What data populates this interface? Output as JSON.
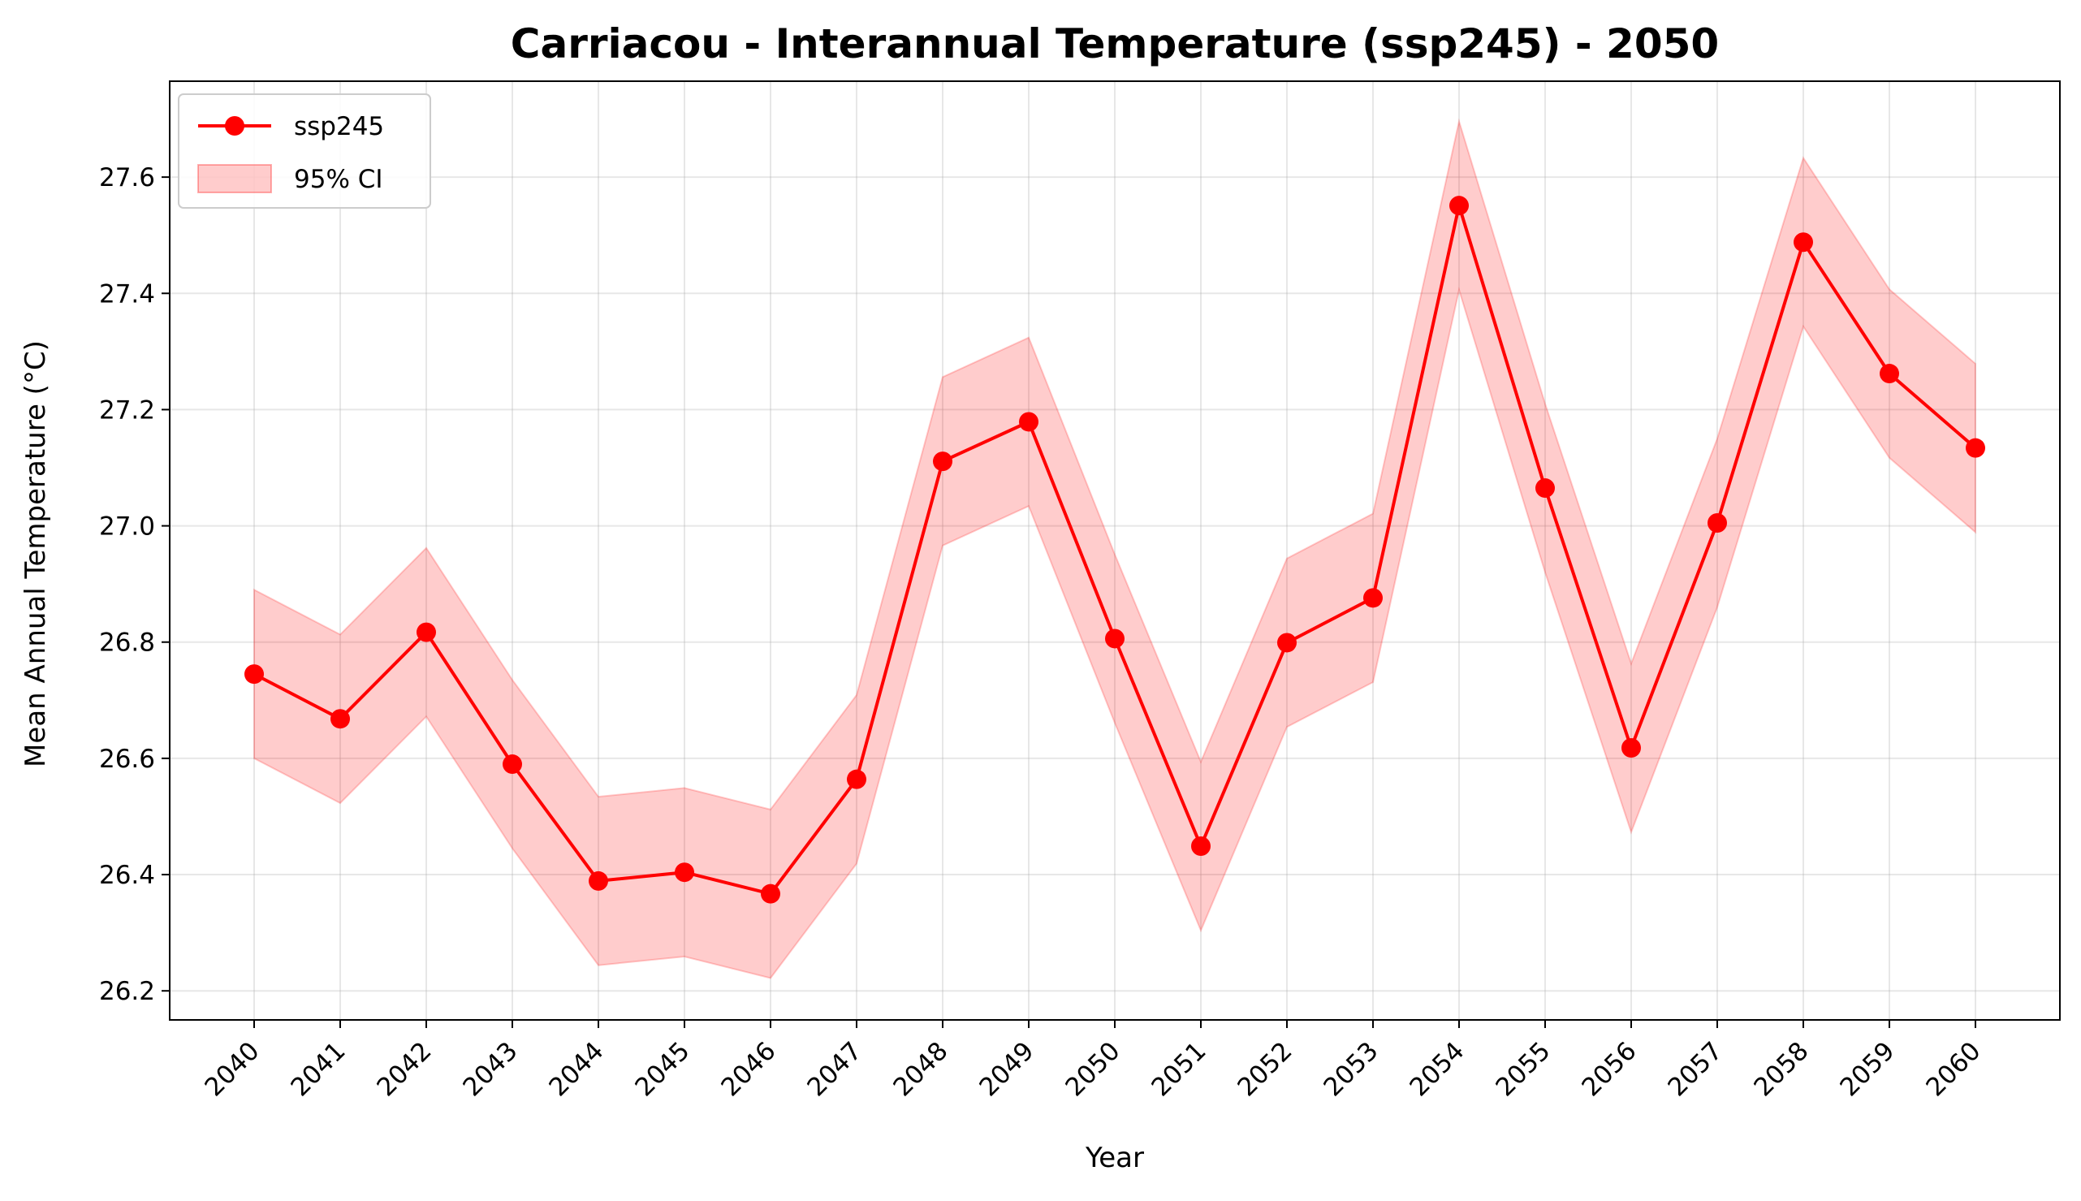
{
  "chart_data": {
    "type": "line",
    "title": "Carriacou - Interannual Temperature (ssp245) - 2050",
    "xlabel": "Year",
    "ylabel": "Mean Annual Temperature (°C)",
    "categories": [
      "2040",
      "2041",
      "2042",
      "2043",
      "2044",
      "2045",
      "2046",
      "2047",
      "2048",
      "2049",
      "2050",
      "2051",
      "2052",
      "2053",
      "2054",
      "2055",
      "2056",
      "2057",
      "2058",
      "2059",
      "2060"
    ],
    "series": [
      {
        "name": "ssp245",
        "color": "#ff0000",
        "values": [
          26.745,
          26.668,
          26.817,
          26.59,
          26.389,
          26.404,
          26.367,
          26.564,
          27.111,
          27.179,
          26.806,
          26.449,
          26.799,
          26.876,
          27.551,
          27.065,
          26.618,
          27.005,
          27.488,
          27.262,
          27.134
        ]
      }
    ],
    "ci_band": {
      "name": "95% CI",
      "color": "#ff0000",
      "opacity": 0.2,
      "lower": [
        26.6,
        26.523,
        26.672,
        26.445,
        26.244,
        26.259,
        26.222,
        26.419,
        26.966,
        27.034,
        26.661,
        26.304,
        26.654,
        26.731,
        27.406,
        26.92,
        26.473,
        26.86,
        27.343,
        27.117,
        26.989
      ],
      "upper": [
        26.89,
        26.813,
        26.962,
        26.735,
        26.534,
        26.549,
        26.512,
        26.709,
        27.256,
        27.324,
        26.951,
        26.594,
        26.944,
        27.021,
        27.696,
        27.21,
        26.763,
        27.15,
        27.633,
        27.407,
        27.279
      ]
    },
    "ylim": [
      26.15,
      27.765
    ],
    "yticks": [
      26.2,
      26.4,
      26.6,
      26.8,
      27.0,
      27.2,
      27.4,
      27.6
    ],
    "ytick_labels": [
      "26.2",
      "26.4",
      "26.6",
      "26.8",
      "27.0",
      "27.2",
      "27.4",
      "27.6"
    ],
    "grid": true,
    "legend_position": "upper-left"
  }
}
